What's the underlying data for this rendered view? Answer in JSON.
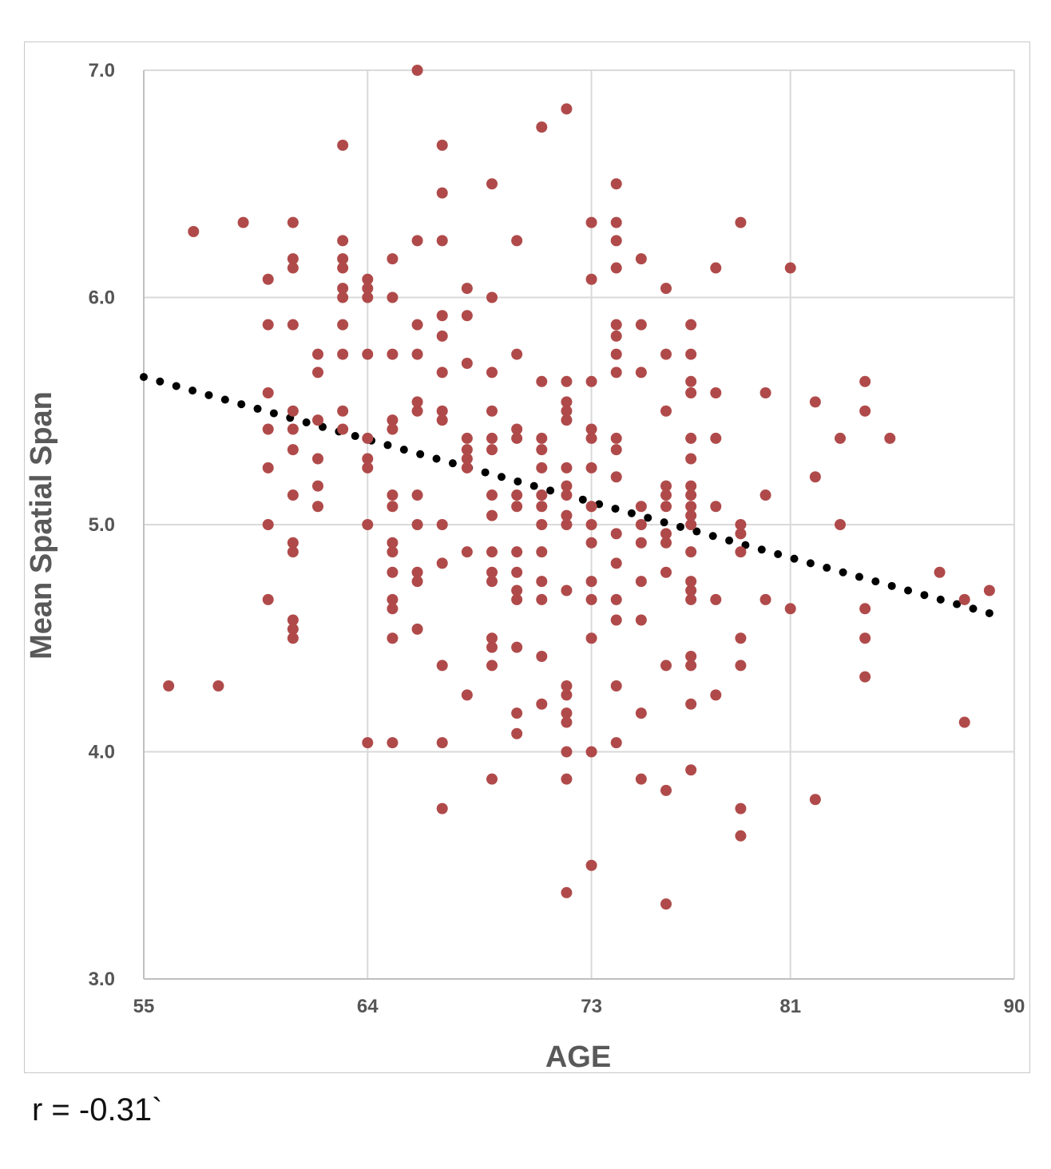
{
  "chart_data": {
    "type": "scatter",
    "xlabel": "AGE",
    "ylabel": "Mean Spatial Span",
    "xlim": [
      55,
      90
    ],
    "ylim": [
      3.0,
      7.0
    ],
    "x_ticks": [
      55,
      64,
      73,
      81,
      90
    ],
    "x_tick_labels": [
      "55",
      "64",
      "73",
      "81",
      "90"
    ],
    "y_ticks": [
      3.0,
      4.0,
      5.0,
      6.0,
      7.0
    ],
    "y_tick_labels": [
      "3.0",
      "4.0",
      "5.0",
      "6.0",
      "7.0"
    ],
    "grid": true,
    "point_color": "#b04a4a",
    "trendline": {
      "style": "dotted",
      "color": "#000000",
      "x": [
        55,
        89
      ],
      "y": [
        5.65,
        4.61
      ]
    },
    "points": [
      [
        56,
        4.29
      ],
      [
        57,
        6.29
      ],
      [
        58,
        4.29
      ],
      [
        59,
        6.33
      ],
      [
        60,
        6.08
      ],
      [
        60,
        5.88
      ],
      [
        60,
        5.58
      ],
      [
        60,
        5.42
      ],
      [
        60,
        5.25
      ],
      [
        60,
        5.0
      ],
      [
        60,
        4.67
      ],
      [
        61,
        6.33
      ],
      [
        61,
        6.17
      ],
      [
        61,
        6.13
      ],
      [
        61,
        5.88
      ],
      [
        61,
        5.5
      ],
      [
        61,
        5.42
      ],
      [
        61,
        5.33
      ],
      [
        61,
        5.13
      ],
      [
        61,
        4.92
      ],
      [
        61,
        4.88
      ],
      [
        61,
        4.58
      ],
      [
        61,
        4.54
      ],
      [
        61,
        4.5
      ],
      [
        62,
        5.75
      ],
      [
        62,
        5.67
      ],
      [
        62,
        5.46
      ],
      [
        62,
        5.29
      ],
      [
        62,
        5.17
      ],
      [
        62,
        5.08
      ],
      [
        63,
        6.67
      ],
      [
        63,
        6.25
      ],
      [
        63,
        6.17
      ],
      [
        63,
        6.13
      ],
      [
        63,
        6.04
      ],
      [
        63,
        6.0
      ],
      [
        63,
        5.88
      ],
      [
        63,
        5.75
      ],
      [
        63,
        5.5
      ],
      [
        63,
        5.42
      ],
      [
        64,
        6.08
      ],
      [
        64,
        6.04
      ],
      [
        64,
        6.0
      ],
      [
        64,
        5.75
      ],
      [
        64,
        5.38
      ],
      [
        64,
        5.29
      ],
      [
        64,
        5.25
      ],
      [
        64,
        5.0
      ],
      [
        64,
        4.04
      ],
      [
        65,
        6.17
      ],
      [
        65,
        6.0
      ],
      [
        65,
        5.75
      ],
      [
        65,
        5.46
      ],
      [
        65,
        5.42
      ],
      [
        65,
        5.13
      ],
      [
        65,
        5.08
      ],
      [
        65,
        4.92
      ],
      [
        65,
        4.88
      ],
      [
        65,
        4.79
      ],
      [
        65,
        4.67
      ],
      [
        65,
        4.63
      ],
      [
        65,
        4.5
      ],
      [
        65,
        4.04
      ],
      [
        66,
        7.0
      ],
      [
        66,
        6.25
      ],
      [
        66,
        5.88
      ],
      [
        66,
        5.75
      ],
      [
        66,
        5.54
      ],
      [
        66,
        5.5
      ],
      [
        66,
        5.13
      ],
      [
        66,
        5.0
      ],
      [
        66,
        4.79
      ],
      [
        66,
        4.75
      ],
      [
        66,
        4.54
      ],
      [
        67,
        6.67
      ],
      [
        67,
        6.46
      ],
      [
        67,
        6.25
      ],
      [
        67,
        5.92
      ],
      [
        67,
        5.83
      ],
      [
        67,
        5.67
      ],
      [
        67,
        5.5
      ],
      [
        67,
        5.46
      ],
      [
        67,
        5.0
      ],
      [
        67,
        4.83
      ],
      [
        67,
        4.38
      ],
      [
        67,
        4.04
      ],
      [
        67,
        3.75
      ],
      [
        68,
        6.04
      ],
      [
        68,
        5.92
      ],
      [
        68,
        5.71
      ],
      [
        68,
        5.38
      ],
      [
        68,
        5.33
      ],
      [
        68,
        5.29
      ],
      [
        68,
        5.25
      ],
      [
        68,
        4.88
      ],
      [
        68,
        4.25
      ],
      [
        69,
        6.5
      ],
      [
        69,
        6.0
      ],
      [
        69,
        5.67
      ],
      [
        69,
        5.5
      ],
      [
        69,
        5.38
      ],
      [
        69,
        5.33
      ],
      [
        69,
        5.13
      ],
      [
        69,
        5.04
      ],
      [
        69,
        4.88
      ],
      [
        69,
        4.79
      ],
      [
        69,
        4.75
      ],
      [
        69,
        4.5
      ],
      [
        69,
        4.46
      ],
      [
        69,
        4.38
      ],
      [
        69,
        3.88
      ],
      [
        70,
        6.25
      ],
      [
        70,
        5.75
      ],
      [
        70,
        5.42
      ],
      [
        70,
        5.38
      ],
      [
        70,
        5.13
      ],
      [
        70,
        5.08
      ],
      [
        70,
        4.88
      ],
      [
        70,
        4.79
      ],
      [
        70,
        4.71
      ],
      [
        70,
        4.67
      ],
      [
        70,
        4.46
      ],
      [
        70,
        4.17
      ],
      [
        70,
        4.08
      ],
      [
        71,
        6.75
      ],
      [
        71,
        5.63
      ],
      [
        71,
        5.38
      ],
      [
        71,
        5.33
      ],
      [
        71,
        5.25
      ],
      [
        71,
        5.13
      ],
      [
        71,
        5.08
      ],
      [
        71,
        5.0
      ],
      [
        71,
        4.88
      ],
      [
        71,
        4.75
      ],
      [
        71,
        4.67
      ],
      [
        71,
        4.42
      ],
      [
        71,
        4.21
      ],
      [
        72,
        6.83
      ],
      [
        72,
        5.63
      ],
      [
        72,
        5.54
      ],
      [
        72,
        5.5
      ],
      [
        72,
        5.46
      ],
      [
        72,
        5.25
      ],
      [
        72,
        5.17
      ],
      [
        72,
        5.13
      ],
      [
        72,
        5.04
      ],
      [
        72,
        5.0
      ],
      [
        72,
        4.71
      ],
      [
        72,
        4.29
      ],
      [
        72,
        4.25
      ],
      [
        72,
        4.17
      ],
      [
        72,
        4.13
      ],
      [
        72,
        4.0
      ],
      [
        72,
        3.88
      ],
      [
        72,
        3.38
      ],
      [
        73,
        6.33
      ],
      [
        73,
        6.08
      ],
      [
        73,
        5.63
      ],
      [
        73,
        5.42
      ],
      [
        73,
        5.38
      ],
      [
        73,
        5.25
      ],
      [
        73,
        5.08
      ],
      [
        73,
        5.0
      ],
      [
        73,
        4.92
      ],
      [
        73,
        4.75
      ],
      [
        73,
        4.67
      ],
      [
        73,
        4.5
      ],
      [
        73,
        4.0
      ],
      [
        73,
        3.5
      ],
      [
        74,
        6.5
      ],
      [
        74,
        6.33
      ],
      [
        74,
        6.25
      ],
      [
        74,
        6.13
      ],
      [
        74,
        5.88
      ],
      [
        74,
        5.83
      ],
      [
        74,
        5.75
      ],
      [
        74,
        5.67
      ],
      [
        74,
        5.38
      ],
      [
        74,
        5.33
      ],
      [
        74,
        5.21
      ],
      [
        74,
        4.96
      ],
      [
        74,
        4.83
      ],
      [
        74,
        4.67
      ],
      [
        74,
        4.58
      ],
      [
        74,
        4.29
      ],
      [
        74,
        4.04
      ],
      [
        75,
        6.17
      ],
      [
        75,
        5.88
      ],
      [
        75,
        5.67
      ],
      [
        75,
        5.08
      ],
      [
        75,
        5.0
      ],
      [
        75,
        4.92
      ],
      [
        75,
        4.75
      ],
      [
        75,
        4.58
      ],
      [
        75,
        4.17
      ],
      [
        75,
        3.88
      ],
      [
        76,
        6.04
      ],
      [
        76,
        5.75
      ],
      [
        76,
        5.5
      ],
      [
        76,
        5.17
      ],
      [
        76,
        5.13
      ],
      [
        76,
        5.08
      ],
      [
        76,
        4.96
      ],
      [
        76,
        4.92
      ],
      [
        76,
        4.79
      ],
      [
        76,
        4.38
      ],
      [
        76,
        3.83
      ],
      [
        76,
        3.33
      ],
      [
        77,
        5.88
      ],
      [
        77,
        5.75
      ],
      [
        77,
        5.63
      ],
      [
        77,
        5.58
      ],
      [
        77,
        5.38
      ],
      [
        77,
        5.29
      ],
      [
        77,
        5.17
      ],
      [
        77,
        5.13
      ],
      [
        77,
        5.08
      ],
      [
        77,
        5.04
      ],
      [
        77,
        5.0
      ],
      [
        77,
        4.88
      ],
      [
        77,
        4.75
      ],
      [
        77,
        4.71
      ],
      [
        77,
        4.67
      ],
      [
        77,
        4.42
      ],
      [
        77,
        4.38
      ],
      [
        77,
        4.21
      ],
      [
        77,
        3.92
      ],
      [
        78,
        6.13
      ],
      [
        78,
        5.58
      ],
      [
        78,
        5.38
      ],
      [
        78,
        5.08
      ],
      [
        78,
        4.67
      ],
      [
        78,
        4.25
      ],
      [
        79,
        6.33
      ],
      [
        79,
        5.0
      ],
      [
        79,
        4.96
      ],
      [
        79,
        4.88
      ],
      [
        79,
        4.5
      ],
      [
        79,
        4.38
      ],
      [
        79,
        3.75
      ],
      [
        79,
        3.63
      ],
      [
        80,
        5.58
      ],
      [
        80,
        5.13
      ],
      [
        80,
        4.67
      ],
      [
        81,
        6.13
      ],
      [
        81,
        4.63
      ],
      [
        82,
        5.54
      ],
      [
        82,
        5.21
      ],
      [
        82,
        3.79
      ],
      [
        83,
        5.38
      ],
      [
        83,
        5.0
      ],
      [
        84,
        5.63
      ],
      [
        84,
        5.5
      ],
      [
        84,
        4.63
      ],
      [
        84,
        4.5
      ],
      [
        84,
        4.33
      ],
      [
        85,
        5.38
      ],
      [
        87,
        4.79
      ],
      [
        88,
        4.67
      ],
      [
        88,
        4.13
      ],
      [
        89,
        4.71
      ]
    ]
  },
  "annotation": {
    "text": "r = -0.31`"
  }
}
